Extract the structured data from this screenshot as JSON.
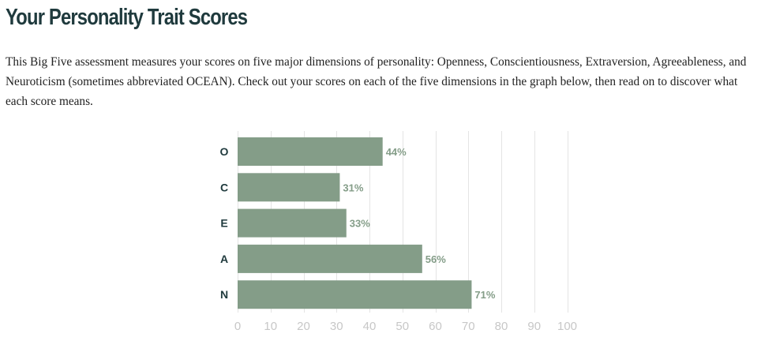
{
  "page": {
    "title": "Your Personality Trait Scores",
    "intro": "This Big Five assessment measures your scores on five major dimensions of personality: Openness, Conscientiousness, Extraversion, Agreeableness, and Neuroticism (sometimes abbreviated OCEAN). Check out your scores on each of the five dimensions in the graph below, then read on to discover what each score means."
  },
  "colors": {
    "bar": "#849d88",
    "value_label": "#849d88",
    "grid": "#e4e4e4",
    "tick": "#c7c7c7",
    "category": "#1f3a3d"
  },
  "chart_data": {
    "type": "bar",
    "orientation": "horizontal",
    "title": "",
    "xlabel": "",
    "ylabel": "",
    "categories": [
      "O",
      "C",
      "E",
      "A",
      "N"
    ],
    "values": [
      44,
      31,
      33,
      56,
      71
    ],
    "value_labels": [
      "44%",
      "31%",
      "33%",
      "56%",
      "71%"
    ],
    "xlim": [
      0,
      100
    ],
    "xticks": [
      0,
      10,
      20,
      30,
      40,
      50,
      60,
      70,
      80,
      90,
      100
    ],
    "grid": true
  }
}
